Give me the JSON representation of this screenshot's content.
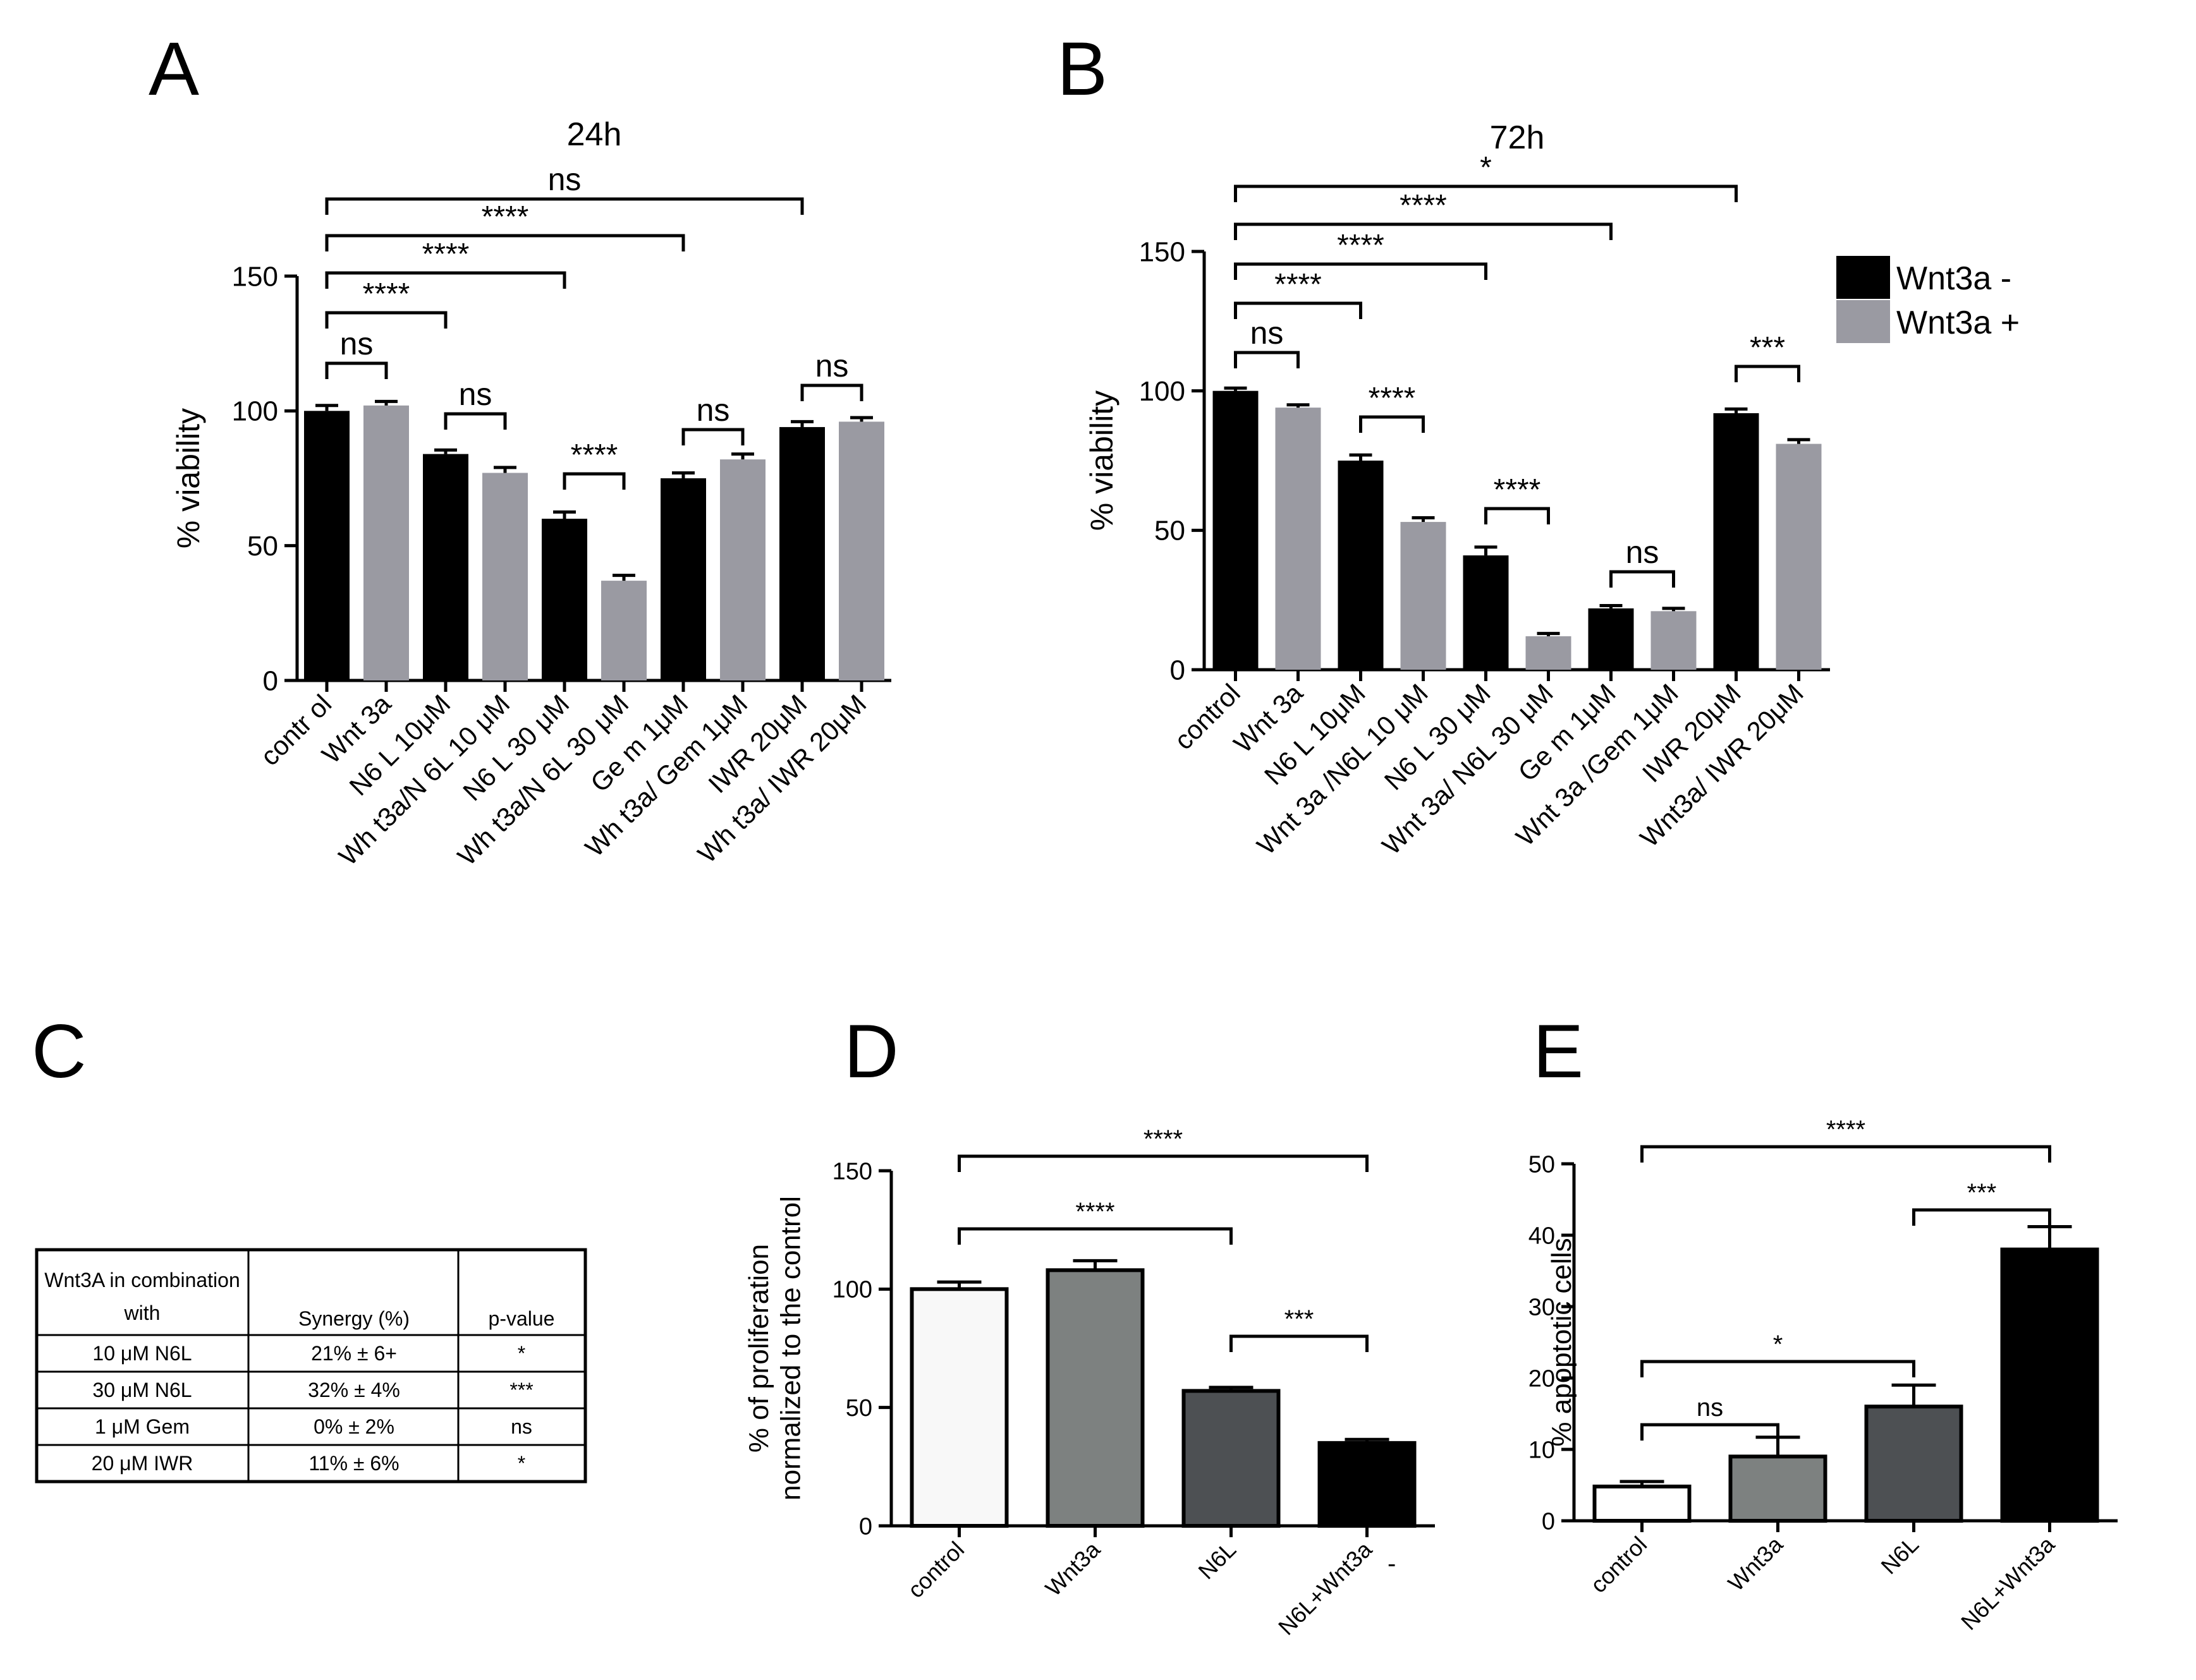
{
  "panels": {
    "A": "A",
    "B": "B",
    "C": "C",
    "D": "D",
    "E": "E"
  },
  "legend": {
    "items": [
      {
        "label": "Wnt3a -",
        "color": "#000000"
      },
      {
        "label": "Wnt3a +",
        "color": "#9a9aa2"
      }
    ]
  },
  "table": {
    "headers": [
      "Wnt3A in combination with",
      "Synergy (%)",
      "p-value"
    ],
    "rows": [
      [
        "10 μM N6L",
        "21% ± 6+",
        "*"
      ],
      [
        "30 μM N6L",
        "32% ± 4%",
        "***"
      ],
      [
        "1 μM Gem",
        "0% ± 2%",
        "ns"
      ],
      [
        "20 μM IWR",
        "11% ± 6%",
        "*"
      ]
    ]
  },
  "stray_mark": "-",
  "chart_data": [
    {
      "id": "A",
      "type": "bar",
      "title": "24h",
      "xlabel": "",
      "ylabel": "% viability",
      "ylim": [
        0,
        150
      ],
      "yticks": [
        0,
        50,
        100,
        150
      ],
      "categories": [
        "contr ol",
        "Wnt 3a",
        "N6 L 10μM",
        "Wh t3a/N 6L 10 μM",
        "N6 L 30 μM",
        "Wh t3a/N 6L 30 μM",
        "Ge m 1μM",
        "Wh t3a/ Gem 1μM",
        "IWR 20μM",
        "Wh t3a/ IWR 20μM"
      ],
      "values": [
        100,
        102,
        84,
        77,
        60,
        37,
        75,
        82,
        94,
        96
      ],
      "errors": [
        2,
        1.5,
        1.5,
        2,
        2.5,
        2,
        2,
        2,
        2,
        1.5
      ],
      "colors": [
        "#000000",
        "#9a9aa2",
        "#000000",
        "#9a9aa2",
        "#000000",
        "#9a9aa2",
        "#000000",
        "#9a9aa2",
        "#000000",
        "#9a9aa2"
      ],
      "annotations": [
        {
          "from": 0,
          "to": 1,
          "label": "ns"
        },
        {
          "from": 2,
          "to": 3,
          "label": "ns"
        },
        {
          "from": 4,
          "to": 5,
          "label": "****"
        },
        {
          "from": 6,
          "to": 7,
          "label": "ns"
        },
        {
          "from": 8,
          "to": 9,
          "label": "ns"
        },
        {
          "from": 0,
          "to": 2,
          "label": "****"
        },
        {
          "from": 0,
          "to": 4,
          "label": "****"
        },
        {
          "from": 0,
          "to": 6,
          "label": "****"
        },
        {
          "from": 0,
          "to": 8,
          "label": "ns"
        }
      ]
    },
    {
      "id": "B",
      "type": "bar",
      "title": "72h",
      "xlabel": "",
      "ylabel": "% viability",
      "ylim": [
        0,
        150
      ],
      "yticks": [
        0,
        50,
        100,
        150
      ],
      "categories": [
        "control",
        "Wnt 3a",
        "N6 L 10μM",
        "Wnt 3a /N6L 10 μM",
        "N6 L 30 μM",
        "Wnt 3a/ N6L 30 μM",
        "Ge m 1μM",
        "Wnt 3a /Gem 1μM",
        "IWR 20μM",
        "Wnt3a/ IWR 20μM"
      ],
      "values": [
        100,
        94,
        75,
        53,
        41,
        12,
        22,
        21,
        92,
        81
      ],
      "errors": [
        1,
        1,
        2,
        1.5,
        3,
        1,
        1,
        1,
        1.5,
        1.5
      ],
      "colors": [
        "#000000",
        "#9a9aa2",
        "#000000",
        "#9a9aa2",
        "#000000",
        "#9a9aa2",
        "#000000",
        "#9a9aa2",
        "#000000",
        "#9a9aa2"
      ],
      "annotations": [
        {
          "from": 0,
          "to": 1,
          "label": "ns"
        },
        {
          "from": 2,
          "to": 3,
          "label": "****"
        },
        {
          "from": 4,
          "to": 5,
          "label": "****"
        },
        {
          "from": 6,
          "to": 7,
          "label": "ns"
        },
        {
          "from": 8,
          "to": 9,
          "label": "***"
        },
        {
          "from": 0,
          "to": 2,
          "label": "****"
        },
        {
          "from": 0,
          "to": 4,
          "label": "****"
        },
        {
          "from": 0,
          "to": 6,
          "label": "****"
        },
        {
          "from": 0,
          "to": 8,
          "label": "*"
        }
      ]
    },
    {
      "id": "D",
      "type": "bar",
      "title": "",
      "xlabel": "",
      "ylabel": "% of proliferation normalized to the control",
      "ylim": [
        0,
        150
      ],
      "yticks": [
        0,
        50,
        100,
        150
      ],
      "categories": [
        "control",
        "Wnt3a",
        "N6L",
        "N6L+Wnt3a"
      ],
      "values": [
        100,
        108,
        57,
        35
      ],
      "errors": [
        3,
        4,
        1.5,
        1.5
      ],
      "colors": [
        "#f8f8f8",
        "#7d8180",
        "#4d5053",
        "#000000"
      ],
      "annotations": [
        {
          "from": 2,
          "to": 3,
          "label": "***"
        },
        {
          "from": 0,
          "to": 2,
          "label": "****"
        },
        {
          "from": 0,
          "to": 3,
          "label": "****"
        }
      ]
    },
    {
      "id": "E",
      "type": "bar",
      "title": "",
      "xlabel": "",
      "ylabel": "% apoptotic cells",
      "ylim": [
        0,
        50
      ],
      "yticks": [
        0,
        10,
        20,
        30,
        40,
        50
      ],
      "categories": [
        "control",
        "Wnt3a",
        "N6L",
        "N6L+Wnt3a"
      ],
      "values": [
        4.8,
        9,
        16,
        38
      ],
      "errors": [
        0.7,
        2.7,
        3,
        3.2
      ],
      "colors": [
        "#ffffff",
        "#7d8180",
        "#4d5053",
        "#000000"
      ],
      "annotations": [
        {
          "from": 0,
          "to": 1,
          "label": "ns"
        },
        {
          "from": 0,
          "to": 2,
          "label": "*"
        },
        {
          "from": 2,
          "to": 3,
          "label": "***"
        },
        {
          "from": 0,
          "to": 3,
          "label": "****"
        }
      ]
    }
  ]
}
